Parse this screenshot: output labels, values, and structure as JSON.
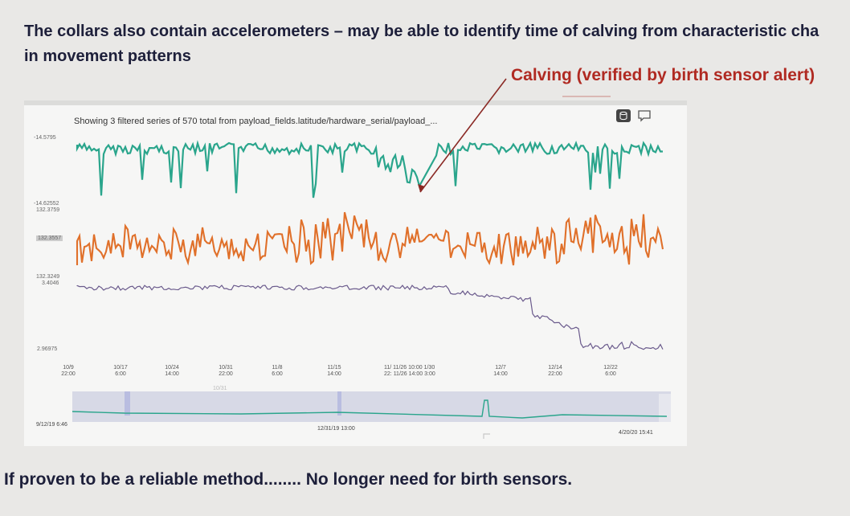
{
  "slide": {
    "title_line1": "The collars also contain accelerometers – may be able to identify time of calving from characteristic cha",
    "title_line2": "in movement patterns",
    "annotation": "Calving (verified by birth sensor alert)",
    "footer": "If proven to be a reliable method........ No longer need for birth sensors."
  },
  "dashboard": {
    "series_header": "Showing 3 filtered series of 570 total from payload_fields.latitude/hardware_serial/payload_...",
    "icons": [
      "database-icon",
      "comment-icon"
    ],
    "y_labels": {
      "top_teal": "-14.5795",
      "mid_teal": "-14.62552",
      "top_orange": "132.3759",
      "orange_marker": "132.3557",
      "bottom_orange": "132.3249",
      "top_purple": "3.4046",
      "bottom_purple": "2.96975"
    },
    "x_ticks": [
      {
        "date": "10/9",
        "time": "22:00"
      },
      {
        "date": "10/17",
        "time": "6:00"
      },
      {
        "date": "10/24",
        "time": "14:00"
      },
      {
        "date": "10/31",
        "time": "22:00"
      },
      {
        "date": "11/8",
        "time": "6:00"
      },
      {
        "date": "11/15",
        "time": "14:00"
      },
      {
        "date": "11/26 10:00",
        "time": "11/26 14:00"
      },
      {
        "date": "12/7",
        "time": "14:00"
      },
      {
        "date": "12/14",
        "time": "22:00"
      },
      {
        "date": "12/22",
        "time": "6:00"
      }
    ],
    "x_tick_extra": {
      "prefix_1": "11/",
      "prefix_2": "22:",
      "suffix_1": "1/30",
      "suffix_2": "3:00"
    },
    "navigator": {
      "start": "9/12/19 6:46",
      "mid": "12/31/19 13:00",
      "end": "4/20/20 15:41",
      "faint_label": "10/31"
    }
  },
  "colors": {
    "teal": "#2aa58c",
    "orange": "#e0702a",
    "purple": "#6a5a8c",
    "red": "#b02a22",
    "title": "#1d1f3a"
  }
}
